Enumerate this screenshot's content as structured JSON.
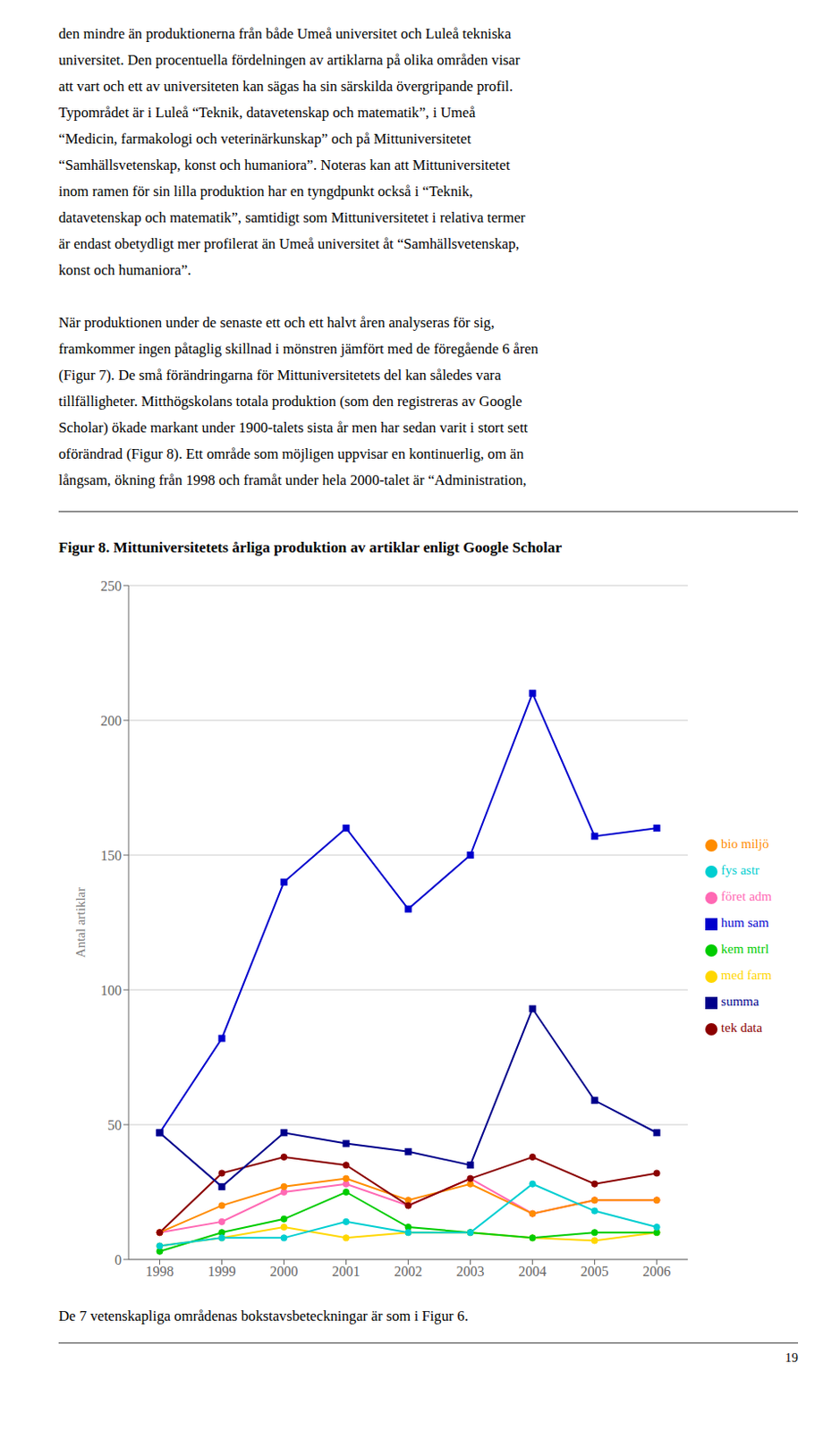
{
  "page_text": {
    "top": [
      "den mindre än produktionerna från både Umeå universitet och Luleå tekniska",
      "universitet. Den procentuella fördelningen av artiklarna på olika områden visar",
      "att vart och ett av universiteten kan sägas ha sin särskilda övergripande profil.",
      "Typområdet är i Luleå “Teknik, datavetenskap och matematik”, i Umeå",
      "“Medicin, farmakologi och veterinärkunskap” och på Mittuniversitetet",
      "“Samhällsvetenskap, konst och humaniora”. Noteras kan att Mittuniversitetet",
      "inom ramen för sin lilla produktion har en tyngdpunkt också i “Teknik,",
      "datavetenskap och matematik”, samtidigt som Mittuniversitetet i relativa termer",
      "är endast obetydligt mer profilerat än Umeå universitet åt “Samhällsvetenskap,",
      "konst och humaniora”."
    ],
    "middle": [
      "När produktionen under de senaste ett och ett halvt åren analyseras för sig,",
      "framkommer ingen påtaglig skillnad i mönstren jämfört med de föregående 6 åren",
      "(Figur 7). De små förändringarna för Mittuniversitetets del kan således vara",
      "tillfälligheter. Mitthögskolans totala produktion (som den registreras av Google",
      "Scholar) ökade markant under 1900-talets sista år men har sedan varit i stort sett",
      "oförändrad (Figur 8). Ett område som möjligen uppvisar en kontinuerlig, om än",
      "långsam, ökning från 1998 och framåt under hela 2000-talet är “Administration,"
    ],
    "bottom": "De 7 vetenskapliga områdenas bokstavsbeteckningar är som i Figur 6.",
    "page_number": "19"
  },
  "chart_data": {
    "type": "line",
    "title": "Figur 8. Mittuniversitetets årliga produktion av artiklar enligt Google Scholar",
    "y_label": "Antal artiklar",
    "x": [
      1998,
      1999,
      2000,
      2001,
      2002,
      2003,
      2004,
      2005,
      2006
    ],
    "xlim": [
      1997.5,
      2006.5
    ],
    "xticks": [
      1998,
      1999,
      2000,
      2001,
      2002,
      2003,
      2004,
      2005,
      2006
    ],
    "ylim": [
      0,
      250
    ],
    "yticks": [
      0,
      50,
      100,
      150,
      200,
      250
    ],
    "grid": "y",
    "legend": "right",
    "series": [
      {
        "name": "hum sam",
        "color": "#0000CD",
        "marker": "square",
        "values": [
          47,
          82,
          140,
          160,
          130,
          150,
          210,
          157,
          160
        ]
      },
      {
        "name": "föret adm",
        "color": "#FF69B4",
        "marker": "circle",
        "values": [
          10,
          14,
          25,
          28,
          20,
          30,
          17,
          22,
          22
        ]
      },
      {
        "name": "med farm",
        "color": "#FFD700",
        "marker": "circle",
        "values": [
          5,
          8,
          12,
          8,
          10,
          10,
          8,
          7,
          10
        ]
      },
      {
        "name": "bio miljö",
        "color": "#FF8C00",
        "marker": "circle",
        "values": [
          10,
          20,
          27,
          30,
          22,
          28,
          17,
          22,
          22
        ]
      },
      {
        "name": "kem mtrl",
        "color": "#00CC00",
        "marker": "circle",
        "values": [
          3,
          10,
          15,
          25,
          12,
          10,
          8,
          10,
          10
        ]
      },
      {
        "name": "tek data",
        "color": "#8B0000",
        "marker": "circle",
        "values": [
          10,
          32,
          38,
          35,
          20,
          30,
          38,
          28,
          32
        ]
      },
      {
        "name": "fys astr",
        "color": "#00CED1",
        "marker": "circle",
        "values": [
          5,
          8,
          8,
          14,
          10,
          10,
          28,
          18,
          12
        ]
      },
      {
        "name": "summa",
        "color": "#00008B",
        "marker": "square",
        "values": [
          47,
          27,
          47,
          43,
          40,
          35,
          93,
          59,
          47
        ]
      }
    ]
  }
}
